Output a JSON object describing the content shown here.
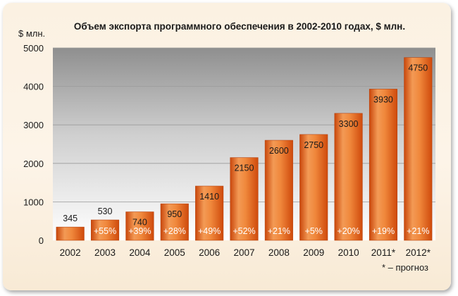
{
  "chart_data": {
    "type": "bar",
    "title": "Объем экспорта программного обеспечения в 2002-2010 годах, $ млн.",
    "ylabel": "$ млн.",
    "xlabel": "",
    "categories": [
      "2002",
      "2003",
      "2004",
      "2005",
      "2006",
      "2007",
      "2008",
      "2009",
      "2010",
      "2011*",
      "2012*"
    ],
    "values": [
      345,
      530,
      740,
      950,
      1410,
      2150,
      2600,
      2750,
      3300,
      3930,
      4750
    ],
    "growth_labels": [
      "",
      "+55%",
      "+39%",
      "+28%",
      "+49%",
      "+52%",
      "+21%",
      "+5%",
      "+20%",
      "+19%",
      "+21%"
    ],
    "yticks": [
      "0",
      "1000",
      "2000",
      "3000",
      "4000",
      "5000"
    ],
    "ylim": [
      0,
      5000
    ],
    "grid": true,
    "footnote": "* – прогноз",
    "colors": {
      "bar_light": "#f7a25c",
      "bar_dark": "#d9520f",
      "plot_top": "#8f8f8f",
      "plot_bottom": "#ffffff"
    }
  }
}
